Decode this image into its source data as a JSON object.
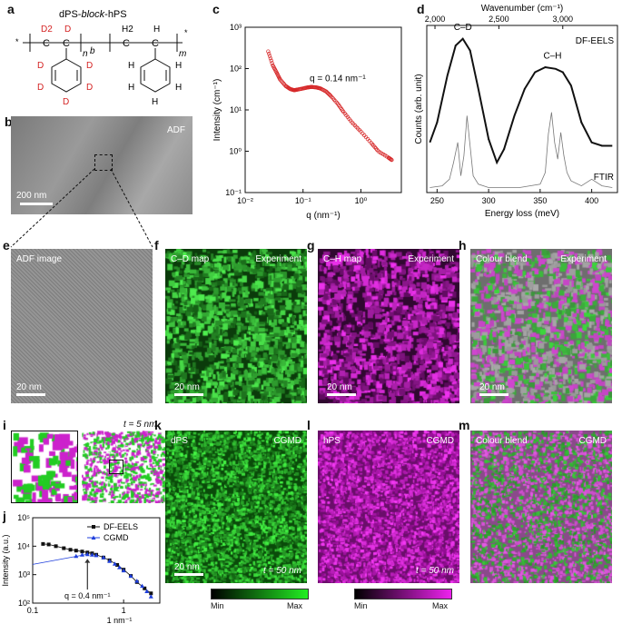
{
  "labels": {
    "a": "a",
    "b": "b",
    "c": "c",
    "d": "d",
    "e": "e",
    "f": "f",
    "g": "g",
    "h": "h",
    "i": "i",
    "j": "j",
    "k": "k",
    "l": "l",
    "m": "m"
  },
  "panel_a": {
    "title": "dPS-block-hPS",
    "title_pre": "dPS-",
    "title_it": "block",
    "title_post": "-hPS",
    "D": "D",
    "D2": "D2",
    "C": "C",
    "H": "H",
    "H2": "H2",
    "n": "n",
    "m": "m",
    "b": "b",
    "star": "*"
  },
  "panel_b": {
    "overlay": "ADF",
    "scalebar": "200 nm"
  },
  "panel_c": {
    "annotation": "q = 0.14 nm⁻¹",
    "xlabel": "q (nm⁻¹)",
    "ylabel": "Intensity (cm⁻¹)",
    "yticks": [
      "10³",
      "10²",
      "10¹",
      "10⁰",
      "10⁻¹"
    ],
    "xticks": [
      "10⁻²",
      "10⁻¹",
      "10⁰"
    ]
  },
  "panel_d": {
    "top_axis_label": "Wavenumber (cm⁻¹)",
    "top_ticks": [
      "2,000",
      "2,500",
      "3,000"
    ],
    "xlabel": "Energy loss (meV)",
    "xticks": [
      "250",
      "300",
      "350",
      "400"
    ],
    "ylabel": "Counts (arb. unit)",
    "legend_eels": "DF-EELS",
    "legend_ftir": "FTIR",
    "peak1": "C–D",
    "peak2": "C–H"
  },
  "panel_e": {
    "overlay": "ADF image",
    "scalebar": "20 nm"
  },
  "panel_f": {
    "overlay_left": "C–D map",
    "overlay_right": "Experiment",
    "scalebar": "20 nm",
    "color": "#1fd21f"
  },
  "panel_g": {
    "overlay_left": "C–H map",
    "overlay_right": "Experiment",
    "scalebar": "20 nm",
    "color": "#d21fd2"
  },
  "panel_h": {
    "overlay_left": "Colour blend",
    "overlay_right": "Experiment",
    "scalebar": "20 nm"
  },
  "panel_i": {
    "overlay": "t = 5 nm"
  },
  "panel_k": {
    "overlay_left": "dPS",
    "overlay_right": "CGMD",
    "scalebar": "20 nm",
    "time": "t = 50 nm",
    "cbar_min": "Min",
    "cbar_max": "Max"
  },
  "panel_l": {
    "overlay_left": "hPS",
    "overlay_right": "CGMD",
    "time": "t = 50 nm",
    "cbar_min": "Min",
    "cbar_max": "Max"
  },
  "panel_m": {
    "overlay_left": "Colour blend",
    "overlay_right": "CGMD"
  },
  "chart_data": [
    {
      "type": "scatter",
      "panel": "c",
      "xlabel": "q (nm⁻¹)",
      "ylabel": "Intensity (cm⁻¹)",
      "xscale": "log",
      "yscale": "log",
      "xlim": [
        0.01,
        5
      ],
      "ylim": [
        0.1,
        1000
      ],
      "annotation": "q = 0.14 nm⁻¹",
      "color": "#d62728",
      "x": [
        0.025,
        0.03,
        0.035,
        0.04,
        0.05,
        0.06,
        0.07,
        0.08,
        0.1,
        0.12,
        0.14,
        0.17,
        0.2,
        0.25,
        0.3,
        0.4,
        0.5,
        0.7,
        1.0,
        1.5,
        2.0,
        3.0,
        3.5
      ],
      "y": [
        260,
        120,
        80,
        55,
        38,
        32,
        30,
        31,
        33,
        35,
        36,
        35,
        33,
        28,
        22,
        14,
        9,
        5,
        3,
        1.6,
        1.0,
        0.7,
        0.6
      ]
    },
    {
      "type": "line",
      "panel": "d",
      "xlabel": "Energy loss (meV)",
      "ylabel": "Counts (arb. unit)",
      "xlim": [
        240,
        425
      ],
      "series": [
        {
          "name": "DF-EELS",
          "x": [
            243,
            250,
            260,
            268,
            275,
            282,
            290,
            300,
            308,
            315,
            325,
            335,
            345,
            355,
            365,
            372,
            380,
            390,
            400,
            410,
            420
          ],
          "y": [
            0.3,
            0.42,
            0.7,
            0.88,
            0.92,
            0.85,
            0.62,
            0.32,
            0.18,
            0.26,
            0.46,
            0.62,
            0.72,
            0.75,
            0.74,
            0.72,
            0.64,
            0.42,
            0.3,
            0.28,
            0.28
          ]
        },
        {
          "name": "FTIR",
          "x": [
            243,
            255,
            262,
            266,
            270,
            273,
            276,
            279,
            282,
            285,
            290,
            300,
            330,
            350,
            355,
            358,
            361,
            364,
            367,
            370,
            373,
            376,
            380,
            390,
            400,
            410,
            420
          ],
          "y": [
            0.03,
            0.04,
            0.08,
            0.18,
            0.3,
            0.1,
            0.22,
            0.46,
            0.28,
            0.1,
            0.05,
            0.03,
            0.03,
            0.05,
            0.12,
            0.35,
            0.48,
            0.3,
            0.2,
            0.36,
            0.22,
            0.12,
            0.07,
            0.04,
            0.08,
            0.04,
            0.03
          ]
        }
      ]
    },
    {
      "type": "scatter",
      "panel": "j",
      "xlabel": "1 nm⁻¹",
      "ylabel": "Intensity (a.u.)",
      "xscale": "log",
      "yscale": "log",
      "xlim": [
        0.1,
        2.5
      ],
      "ylim": [
        100,
        100000
      ],
      "annotation": "q = 0.4 nm⁻¹",
      "series": [
        {
          "name": "DF-EELS",
          "marker": "square",
          "color": "#111111",
          "x": [
            0.13,
            0.15,
            0.18,
            0.22,
            0.26,
            0.3,
            0.35,
            0.4,
            0.45,
            0.5,
            0.6,
            0.7,
            0.85,
            1.0,
            1.2,
            1.4,
            1.7,
            2.0
          ],
          "y": [
            12000,
            11500,
            10000,
            8500,
            7500,
            7000,
            6500,
            6000,
            5600,
            5000,
            4000,
            3200,
            2200,
            1500,
            900,
            550,
            330,
            220
          ]
        },
        {
          "name": "CGMD",
          "marker": "triangle",
          "color": "#1f3fdc",
          "x": [
            0.3,
            0.35,
            0.4,
            0.45,
            0.5,
            0.6,
            0.7,
            0.8,
            0.9,
            1.0,
            1.2,
            1.4,
            1.6,
            1.8,
            2.0
          ],
          "y": [
            4500,
            5000,
            5200,
            5000,
            4800,
            4000,
            3000,
            2400,
            1800,
            1400,
            900,
            600,
            400,
            260,
            170
          ]
        }
      ]
    }
  ]
}
